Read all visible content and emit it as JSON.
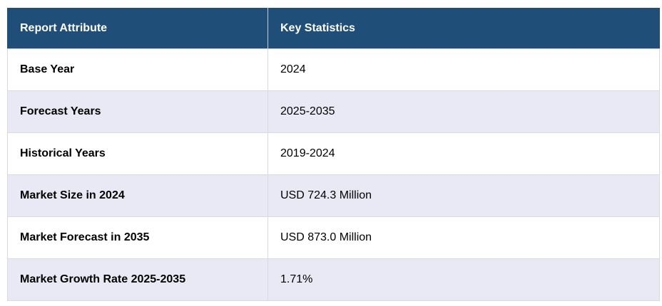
{
  "table": {
    "headers": [
      "Report Attribute",
      "Key Statistics"
    ],
    "rows": [
      [
        "Base Year",
        "2024"
      ],
      [
        "Forecast Years",
        "2025-2035"
      ],
      [
        "Historical Years",
        "2019-2024"
      ],
      [
        "Market Size in 2024",
        "USD 724.3 Million"
      ],
      [
        "Market Forecast in 2035",
        "USD 873.0 Million"
      ],
      [
        "Market Growth Rate 2025-2035",
        "1.71%"
      ]
    ],
    "colors": {
      "header_bg": "#1f4e79",
      "header_text": "#ffffff",
      "row_odd_bg": "#ffffff",
      "row_even_bg": "#e8e9f5"
    }
  }
}
